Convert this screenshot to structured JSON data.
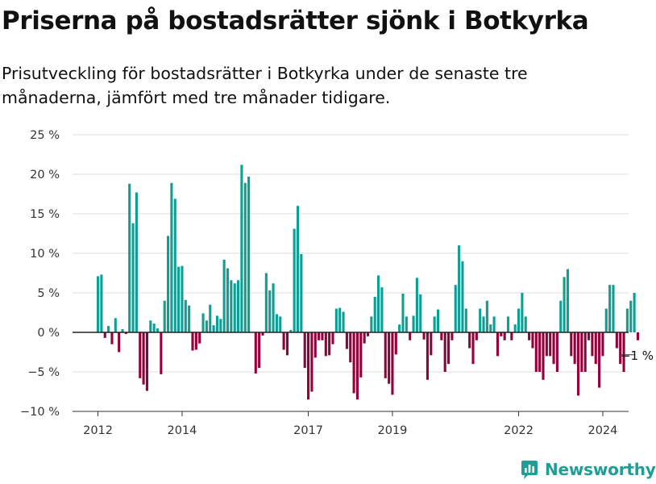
{
  "header": {
    "title": "Priserna på bostadsrätter sjönk i Botkyrka",
    "subtitle": "Prisutveckling för bostadsrätter i Botkyrka under de senaste tre månaderna, jämfört med tre månader tidigare."
  },
  "brand": {
    "name": "Newsworthy",
    "icon": "bar-chart-logo-icon",
    "color": "#1f9e96"
  },
  "colors": {
    "positive": "#0e9e94",
    "negative": "#93003a",
    "grid": "#dddddd",
    "zero_line": "#222222"
  },
  "chart_data": {
    "type": "bar",
    "title": "",
    "xlabel": "",
    "ylabel": "",
    "x_unit": "month",
    "start": "2012-01",
    "ylim": [
      -10,
      25
    ],
    "yticks": [
      -10,
      -5,
      0,
      5,
      10,
      15,
      20,
      25
    ],
    "ytick_labels": [
      "−10 %",
      "−5 %",
      "0 %",
      "5 %",
      "10 %",
      "15 %",
      "20 %",
      "25 %"
    ],
    "xticks": [
      "2012",
      "2014",
      "2017",
      "2019",
      "2022",
      "2024"
    ],
    "grid": true,
    "legend": "none",
    "annotation": {
      "text": "−1 %",
      "target": "last"
    },
    "values": [
      7.1,
      7.3,
      -0.7,
      0.8,
      -1.5,
      1.8,
      -2.5,
      0.4,
      -0.2,
      18.8,
      13.8,
      17.7,
      -5.8,
      -6.6,
      -7.4,
      1.5,
      1.1,
      0.5,
      -5.3,
      4.0,
      12.2,
      18.9,
      16.9,
      8.3,
      8.4,
      4.1,
      3.4,
      -2.3,
      -2.2,
      -1.4,
      2.4,
      1.5,
      3.5,
      0.9,
      2.1,
      1.7,
      9.2,
      8.1,
      6.6,
      6.2,
      6.6,
      21.2,
      18.9,
      19.7,
      0.0,
      -5.2,
      -4.5,
      -0.4,
      7.5,
      5.3,
      6.2,
      2.3,
      2.0,
      -2.2,
      -2.9,
      0.3,
      13.1,
      16.0,
      9.9,
      -4.5,
      -8.5,
      -7.5,
      -3.2,
      -1.0,
      -1.0,
      -3.0,
      -2.9,
      -1.5,
      3.0,
      3.1,
      2.6,
      -2.1,
      -3.8,
      -7.7,
      -8.5,
      -5.7,
      -1.4,
      -0.5,
      2.0,
      4.5,
      7.2,
      5.7,
      -5.8,
      -6.5,
      -7.9,
      -2.8,
      1.0,
      4.9,
      2.0,
      -1.0,
      2.1,
      6.9,
      4.8,
      -0.9,
      -6.0,
      -2.9,
      2.0,
      2.9,
      -1.0,
      -5.0,
      -4.0,
      -1.0,
      6.0,
      11.0,
      9.0,
      3.0,
      -2.0,
      -4.0,
      -1.0,
      3.0,
      2.0,
      4.0,
      1.0,
      2.0,
      -3.0,
      -0.5,
      -1.0,
      2.0,
      -1.0,
      1.0,
      3.0,
      5.0,
      2.0,
      -1.0,
      -2.0,
      -5.0,
      -5.0,
      -6.0,
      -3.0,
      -3.0,
      -4.0,
      -5.0,
      4.0,
      7.0,
      8.0,
      -3.0,
      -4.0,
      -8.0,
      -5.0,
      -5.0,
      -1.0,
      -3.0,
      -4.0,
      -7.0,
      -3.0,
      3.0,
      6.0,
      6.0,
      -2.0,
      -4.0,
      -5.0,
      3.0,
      4.0,
      5.0,
      -1.0
    ]
  }
}
